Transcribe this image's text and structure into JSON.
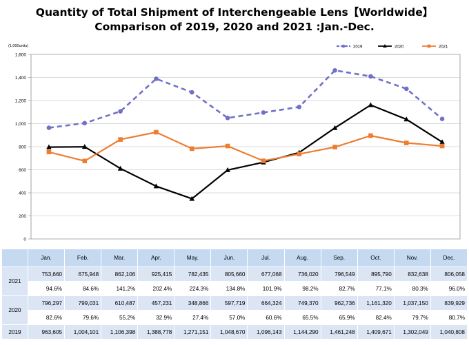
{
  "title_line1": "Quantity of Total Shipment of Interchengeable Lens【Worldwide】",
  "title_line2": "Comparison of 2019, 2020 and 2021 :Jan.-Dec.",
  "chart_data": {
    "type": "line",
    "title": "Quantity of Total Shipment of Interchengeable Lens【Worldwide】 Comparison of 2019, 2020 and 2021 :Jan.-Dec.",
    "unit_label": "(1,000units)",
    "ylim": [
      0,
      1600
    ],
    "yticks": [
      "0",
      "200",
      "400",
      "600",
      "800",
      "1,000",
      "1,200",
      "1,400",
      "1,600"
    ],
    "ytick_values": [
      0,
      200,
      400,
      600,
      800,
      1000,
      1200,
      1400,
      1600
    ],
    "grid": true,
    "legend_position": "top-right",
    "categories": [
      "Jan.",
      "Feb.",
      "Mar.",
      "Apr.",
      "May.",
      "Jun.",
      "Jul.",
      "Aug.",
      "Sep.",
      "Oct.",
      "Nov.",
      "Dec."
    ],
    "series": [
      {
        "name": "2019",
        "color": "#7070c8",
        "style": "dashed",
        "marker": "circle",
        "values": [
          963.605,
          1004.101,
          1106.398,
          1388.778,
          1271.151,
          1048.67,
          1096.143,
          1144.29,
          1461.248,
          1409.671,
          1302.049,
          1040.808
        ]
      },
      {
        "name": "2020",
        "color": "#000000",
        "style": "solid",
        "marker": "triangle",
        "values": [
          796.297,
          799.031,
          610.487,
          457.231,
          348.866,
          597.719,
          664.324,
          749.37,
          962.736,
          1161.32,
          1037.15,
          839.929
        ]
      },
      {
        "name": "2021",
        "color": "#ed7d31",
        "style": "solid",
        "marker": "square",
        "values": [
          753.66,
          675.948,
          862.106,
          925.415,
          782.435,
          805.66,
          677.068,
          736.02,
          796.549,
          895.79,
          832.638,
          806.058
        ]
      }
    ]
  },
  "table": {
    "months": [
      "Jan.",
      "Feb.",
      "Mar.",
      "Apr.",
      "May.",
      "Jun.",
      "Jul.",
      "Aug.",
      "Sep.",
      "Oct.",
      "Nov.",
      "Dec."
    ],
    "rows": [
      {
        "year": "2021",
        "quantity": [
          "753,660",
          "675,948",
          "862,106",
          "925,415",
          "782,435",
          "805,660",
          "677,068",
          "736,020",
          "796,549",
          "895,790",
          "832,638",
          "806,058"
        ],
        "percent": [
          "94.6%",
          "84.6%",
          "141.2%",
          "202.4%",
          "224.3%",
          "134.8%",
          "101.9%",
          "98.2%",
          "82.7%",
          "77.1%",
          "80.3%",
          "96.0%"
        ]
      },
      {
        "year": "2020",
        "quantity": [
          "796,297",
          "799,031",
          "610,487",
          "457,231",
          "348,866",
          "597,719",
          "664,324",
          "749,370",
          "962,736",
          "1,161,320",
          "1,037,150",
          "839,929"
        ],
        "percent": [
          "82.6%",
          "79.6%",
          "55.2%",
          "32.9%",
          "27.4%",
          "57.0%",
          "60.6%",
          "65.5%",
          "65.9%",
          "82.4%",
          "79.7%",
          "80.7%"
        ]
      },
      {
        "year": "2019",
        "quantity": [
          "963,605",
          "1,004,101",
          "1,106,398",
          "1,388,778",
          "1,271,151",
          "1,048,670",
          "1,096,143",
          "1,144,290",
          "1,461,248",
          "1,409,671",
          "1,302,049",
          "1,040,808"
        ],
        "percent": []
      }
    ]
  }
}
